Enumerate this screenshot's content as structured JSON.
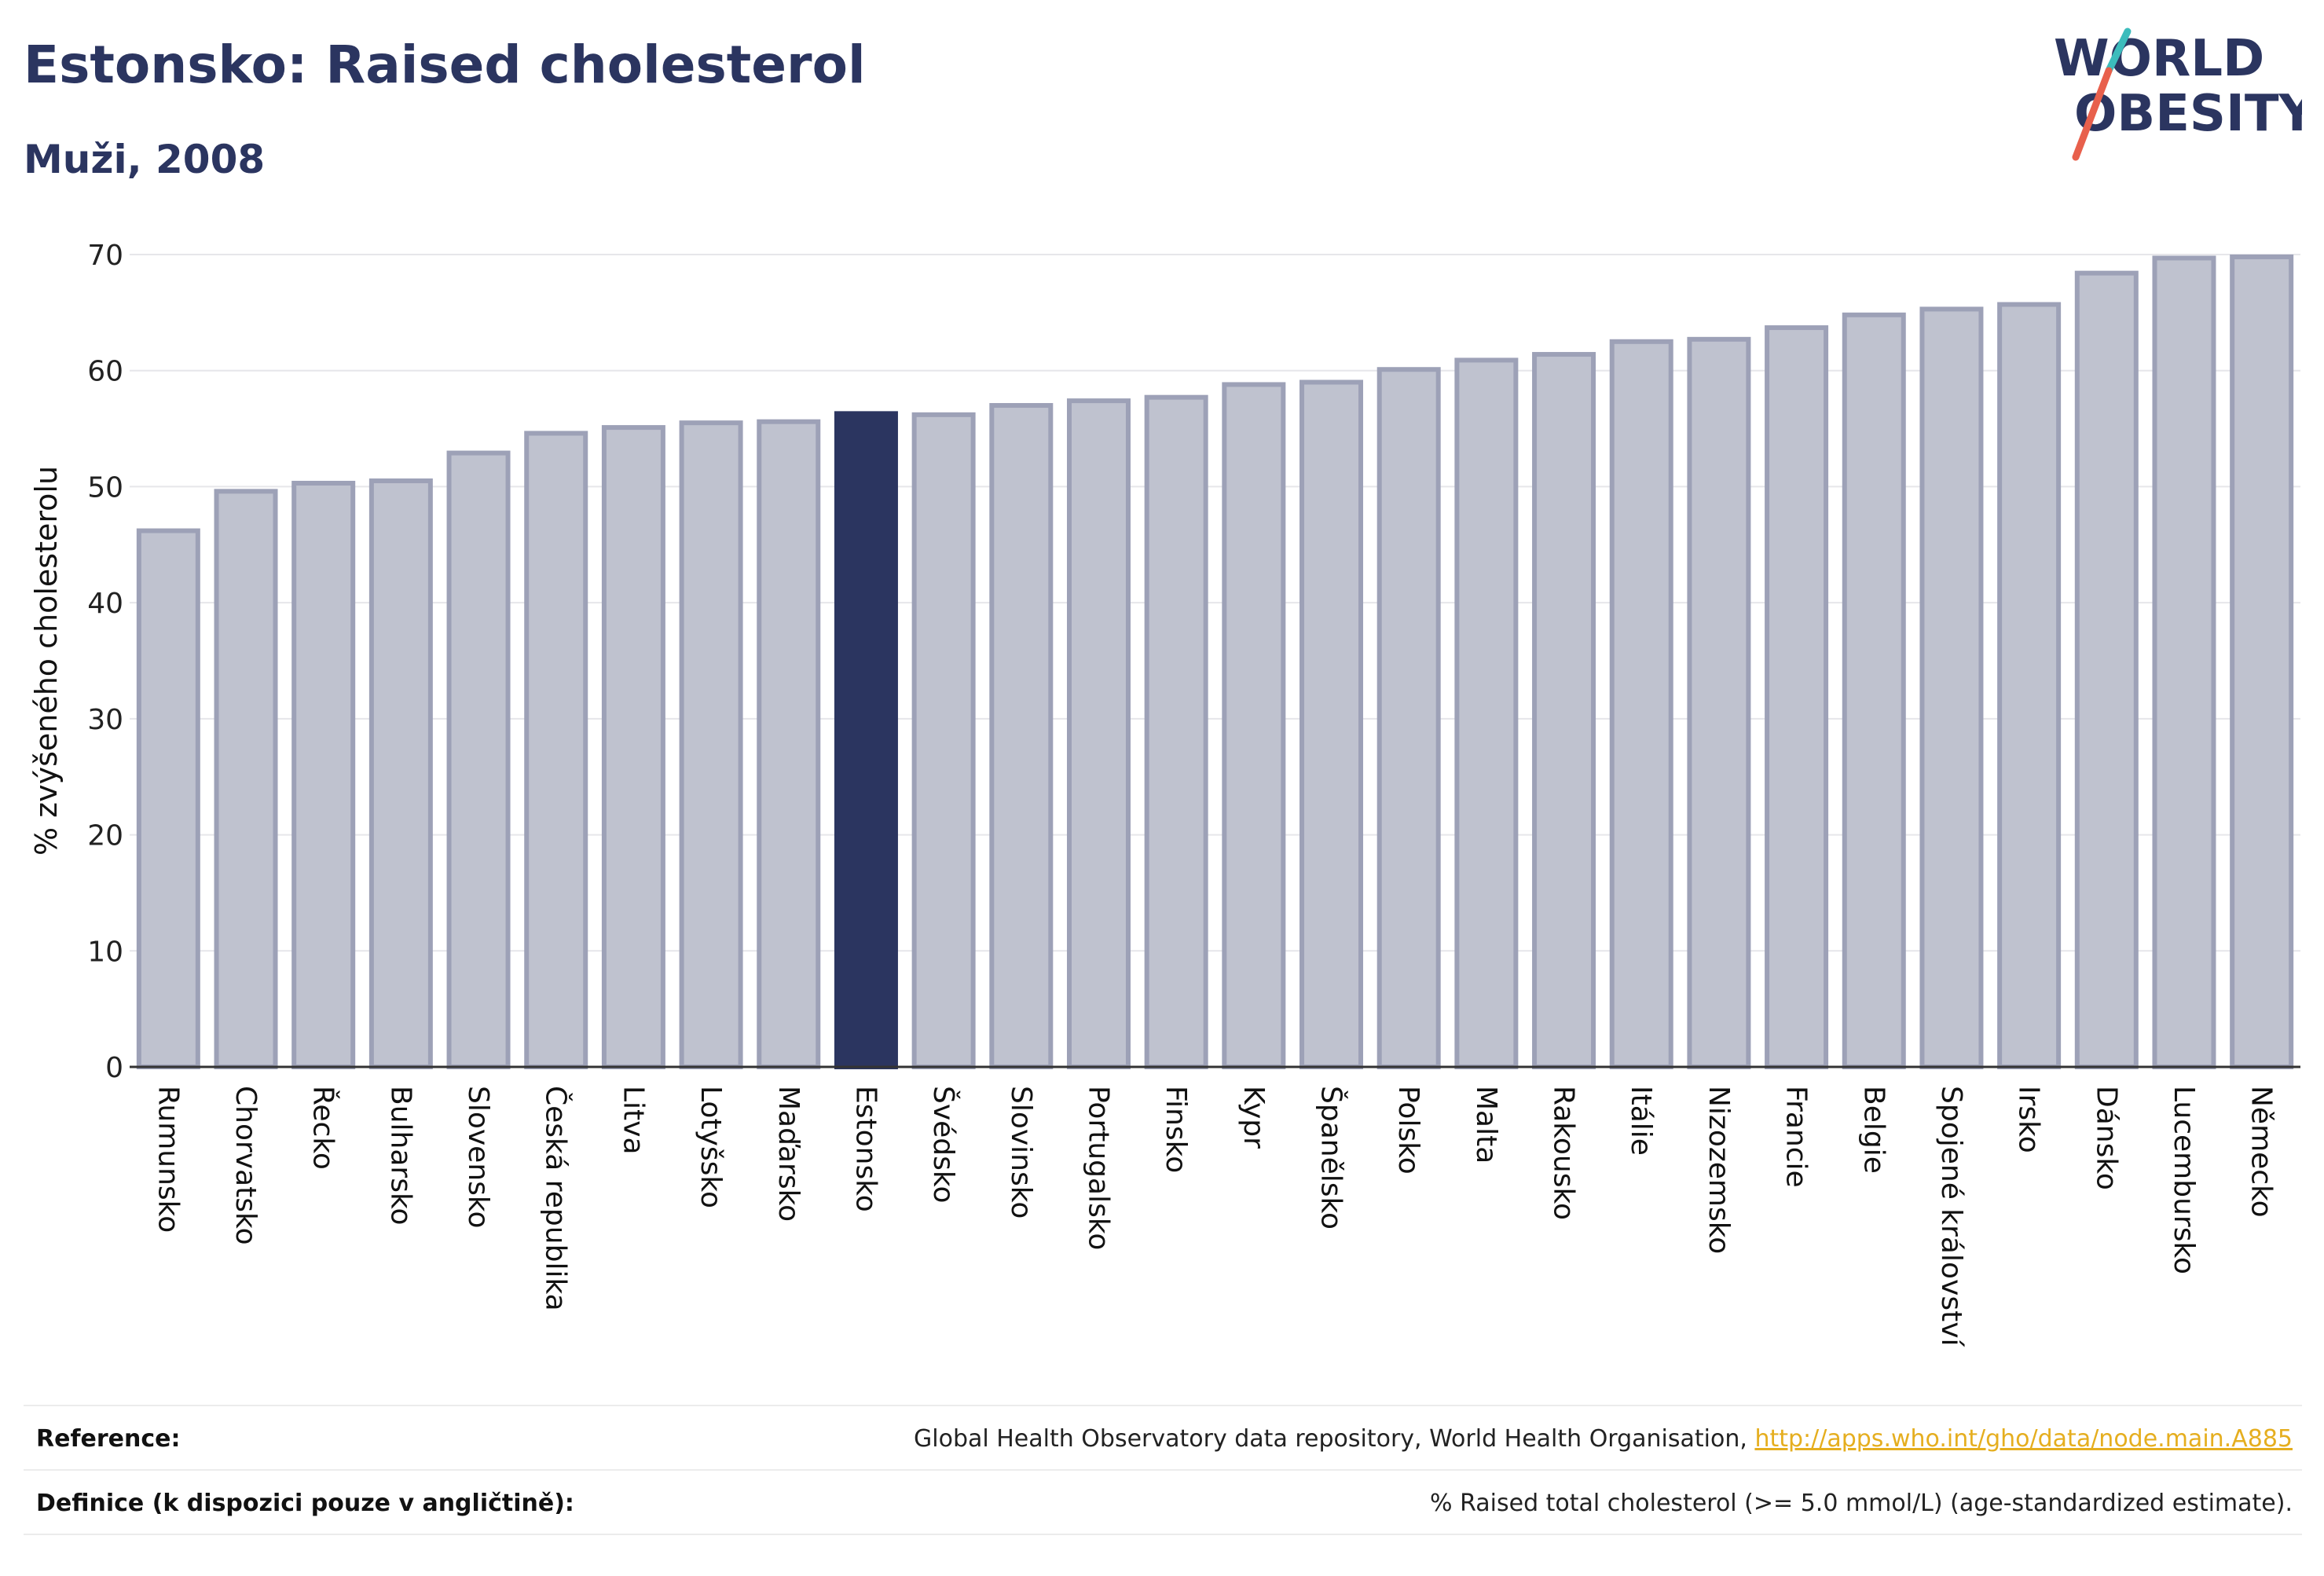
{
  "header": {
    "title": "Estonsko: Raised cholesterol",
    "subtitle": "Muži, 2008"
  },
  "logo": {
    "line1": "WORLD",
    "line2": "OBESITY",
    "colors": {
      "text": "#2b3560",
      "slash_teal": "#3cbcbc",
      "slash_red": "#e8604c"
    }
  },
  "footer": {
    "reference_label": "Reference:",
    "reference_text": "Global Health Observatory data repository, World Health Organisation, ",
    "reference_link": "http://apps.who.int/gho/data/node.main.A885",
    "definition_label": "Definice (k dispozici pouze v angličtině):",
    "definition_text": "% Raised total cholesterol (>= 5.0 mmol/L) (age-standardized estimate)."
  },
  "chart_data": {
    "type": "bar",
    "title": "Estonsko: Raised cholesterol",
    "subtitle": "Muži, 2008",
    "xlabel": "",
    "ylabel": "% zvýšeného cholesterolu",
    "ylim": [
      0,
      70
    ],
    "yticks": [
      0,
      10,
      20,
      30,
      40,
      50,
      60,
      70
    ],
    "grid": true,
    "highlight": "Estonsko",
    "colors": {
      "bar": "#bfc2cf",
      "bar_border": "#9da1b7",
      "highlight": "#2b3560"
    },
    "categories": [
      "Rumunsko",
      "Chorvatsko",
      "Řecko",
      "Bulharsko",
      "Slovensko",
      "Česká republika",
      "Litva",
      "Lotyšsko",
      "Maďarsko",
      "Estonsko",
      "Švédsko",
      "Slovinsko",
      "Portugalsko",
      "Finsko",
      "Kypr",
      "Španělsko",
      "Polsko",
      "Malta",
      "Rakousko",
      "Itálie",
      "Nizozemsko",
      "Francie",
      "Belgie",
      "Spojené království",
      "Irsko",
      "Dánsko",
      "Lucembursko",
      "Německo"
    ],
    "values": [
      46.2,
      49.6,
      50.3,
      50.5,
      52.9,
      54.6,
      55.1,
      55.5,
      55.6,
      56.3,
      56.2,
      57.0,
      57.4,
      57.7,
      58.8,
      59.0,
      60.1,
      60.9,
      61.4,
      62.5,
      62.7,
      63.7,
      64.8,
      65.3,
      65.7,
      68.4,
      69.7,
      69.8
    ]
  }
}
